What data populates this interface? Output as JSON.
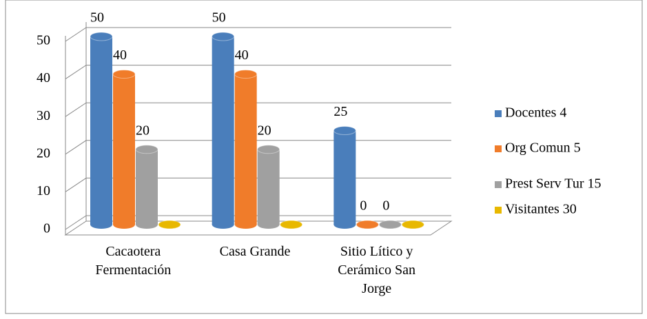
{
  "chart_data": {
    "type": "bar3d",
    "categories": [
      "Cacaotera Fermentación",
      "Casa Grande",
      "Sitio Lítico y Cerámico San Jorge"
    ],
    "series": [
      {
        "name": "Docentes 4",
        "color": "#4a7ebb",
        "values": [
          50,
          50,
          25
        ],
        "show_labels": true
      },
      {
        "name": "Org Comun 5",
        "color": "#f07c2a",
        "values": [
          40,
          40,
          0
        ],
        "show_labels": true
      },
      {
        "name": "Prest Serv Tur 15",
        "color": "#a0a0a0",
        "values": [
          20,
          20,
          0
        ],
        "show_labels": true
      },
      {
        "name": "Visitantes 30",
        "color": "#e8b800",
        "values": [
          0,
          0,
          0
        ],
        "show_labels": false
      }
    ],
    "ylim": [
      0,
      50
    ],
    "yticks": [
      0,
      10,
      20,
      30,
      40,
      50
    ],
    "grid": true,
    "legend": "right"
  }
}
